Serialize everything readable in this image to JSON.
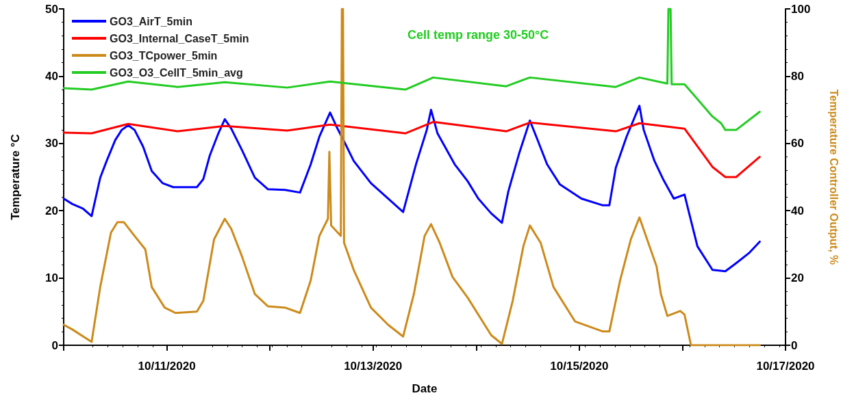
{
  "chart_data": {
    "type": "line",
    "xlabel": "Date",
    "ylabel": "Temperature °C",
    "y2label": "Temperature Controller Output, %",
    "annotations": [
      "Cell temp range 30-50°C"
    ],
    "xlim": [
      "2020-10-10",
      "2020-10-17"
    ],
    "xticks": [
      {
        "value": "2020-10-10",
        "label": null
      },
      {
        "value": "2020-10-11",
        "label": "10/11/2020"
      },
      {
        "value": "2020-10-12",
        "label": null
      },
      {
        "value": "2020-10-13",
        "label": "10/13/2020"
      },
      {
        "value": "2020-10-14",
        "label": null
      },
      {
        "value": "2020-10-15",
        "label": "10/15/2020"
      },
      {
        "value": "2020-10-16",
        "label": null
      },
      {
        "value": "2020-10-17",
        "label": "10/17/2020"
      }
    ],
    "ylim": [
      0,
      50
    ],
    "yticks": [
      0,
      10,
      20,
      30,
      40,
      50
    ],
    "y2lim": [
      0,
      100
    ],
    "y2ticks": [
      0,
      20,
      40,
      60,
      80,
      100
    ],
    "grid": false,
    "legend": "top left",
    "marker": "none",
    "line_style": "solid",
    "series": [
      {
        "name": "GO3_AirT_5min",
        "color": "#0000ff",
        "x": [
          "2020-10-10T00:00",
          "2020-10-10T02:00",
          "2020-10-10T04:30",
          "2020-10-10T06:30",
          "2020-10-10T08:30",
          "2020-10-10T10:00",
          "2020-10-10T12:00",
          "2020-10-10T13:30",
          "2020-10-10T15:00",
          "2020-10-10T16:30",
          "2020-10-10T18:30",
          "2020-10-10T20:30",
          "2020-10-10T23:00",
          "2020-10-11T01:30",
          "2020-10-11T07:00",
          "2020-10-11T08:30",
          "2020-10-11T10:00",
          "2020-10-11T12:00",
          "2020-10-11T13:30",
          "2020-10-11T15:00",
          "2020-10-11T17:30",
          "2020-10-11T20:30",
          "2020-10-11T23:30",
          "2020-10-12T03:30",
          "2020-10-12T07:00",
          "2020-10-12T09:30",
          "2020-10-12T11:30",
          "2020-10-12T14:00",
          "2020-10-12T15:30",
          "2020-10-12T17:30",
          "2020-10-12T19:30",
          "2020-10-12T23:30",
          "2020-10-13T03:30",
          "2020-10-13T07:00",
          "2020-10-13T10:00",
          "2020-10-13T12:30",
          "2020-10-13T13:30",
          "2020-10-13T15:00",
          "2020-10-13T19:00",
          "2020-10-13T22:00",
          "2020-10-14T00:30",
          "2020-10-14T03:30",
          "2020-10-14T06:00",
          "2020-10-14T07:30",
          "2020-10-14T10:00",
          "2020-10-14T12:30",
          "2020-10-14T14:00",
          "2020-10-14T16:30",
          "2020-10-14T19:30",
          "2020-10-15T00:30",
          "2020-10-15T05:30",
          "2020-10-15T07:00",
          "2020-10-15T08:30",
          "2020-10-15T11:00",
          "2020-10-15T14:00",
          "2020-10-15T15:00",
          "2020-10-15T17:30",
          "2020-10-15T19:30",
          "2020-10-15T22:00",
          "2020-10-16T00:30",
          "2020-10-16T01:30",
          "2020-10-16T03:30",
          "2020-10-16T07:00",
          "2020-10-16T10:00",
          "2020-10-16T12:30",
          "2020-10-16T15:30",
          "2020-10-16T18:00"
        ],
        "values": [
          21.8,
          21.0,
          20.3,
          19.2,
          24.9,
          27.4,
          30.5,
          32.0,
          32.7,
          32.0,
          29.5,
          25.9,
          24.1,
          23.5,
          23.5,
          24.7,
          28.2,
          31.5,
          33.6,
          32.2,
          29.0,
          24.9,
          23.2,
          23.1,
          22.7,
          26.9,
          31.0,
          34.6,
          32.5,
          30.0,
          27.4,
          24.1,
          21.8,
          19.8,
          26.9,
          32.0,
          35.0,
          31.5,
          26.9,
          24.4,
          21.8,
          19.6,
          18.2,
          22.9,
          28.5,
          33.4,
          31.0,
          26.9,
          23.9,
          21.8,
          20.8,
          20.8,
          26.4,
          31.0,
          35.6,
          32.0,
          27.4,
          24.7,
          21.8,
          22.4,
          19.8,
          14.7,
          11.2,
          11.0,
          12.2,
          13.7,
          15.4
        ]
      },
      {
        "name": "GO3_Internal_CaseT_5min",
        "color": "#ff0000",
        "x": [
          "2020-10-10T00:00",
          "2020-10-10T06:30",
          "2020-10-10T15:00",
          "2020-10-11T02:30",
          "2020-10-11T13:30",
          "2020-10-12T04:00",
          "2020-10-12T14:00",
          "2020-10-13T07:30",
          "2020-10-13T14:00",
          "2020-10-14T07:00",
          "2020-10-14T12:30",
          "2020-10-15T08:30",
          "2020-10-15T14:00",
          "2020-10-16T00:30",
          "2020-10-16T07:00",
          "2020-10-16T10:00",
          "2020-10-16T12:30",
          "2020-10-16T18:00"
        ],
        "values": [
          31.6,
          31.5,
          32.9,
          31.8,
          32.6,
          31.9,
          32.8,
          31.5,
          33.2,
          31.8,
          33.1,
          31.8,
          33.0,
          32.2,
          26.5,
          25.0,
          25.0,
          28.0
        ]
      },
      {
        "name": "GO3_TCpower_5min",
        "color": "#cc8a1a",
        "axis": "y2",
        "x": [
          "2020-10-10T00:00",
          "2020-10-10T02:00",
          "2020-10-10T06:30",
          "2020-10-10T08:30",
          "2020-10-10T11:00",
          "2020-10-10T12:30",
          "2020-10-10T14:00",
          "2020-10-10T16:30",
          "2020-10-10T19:00",
          "2020-10-10T20:30",
          "2020-10-10T23:30",
          "2020-10-11T02:00",
          "2020-10-11T07:00",
          "2020-10-11T08:30",
          "2020-10-11T11:00",
          "2020-10-11T13:30",
          "2020-10-11T15:00",
          "2020-10-11T17:30",
          "2020-10-11T20:30",
          "2020-10-11T23:30",
          "2020-10-12T03:30",
          "2020-10-12T07:00",
          "2020-10-12T09:30",
          "2020-10-12T11:30",
          "2020-10-12T13:30",
          "2020-10-12T13:50",
          "2020-10-12T14:15",
          "2020-10-12T16:30",
          "2020-10-12T16:45",
          "2020-10-12T17:00",
          "2020-10-12T17:15",
          "2020-10-12T19:30",
          "2020-10-12T23:30",
          "2020-10-13T03:30",
          "2020-10-13T07:00",
          "2020-10-13T09:30",
          "2020-10-13T12:00",
          "2020-10-13T13:30",
          "2020-10-13T15:30",
          "2020-10-13T18:30",
          "2020-10-13T22:00",
          "2020-10-14T03:30",
          "2020-10-14T06:00",
          "2020-10-14T08:30",
          "2020-10-14T11:00",
          "2020-10-14T12:30",
          "2020-10-14T15:00",
          "2020-10-14T18:00",
          "2020-10-14T23:00",
          "2020-10-15T05:30",
          "2020-10-15T07:00",
          "2020-10-15T09:30",
          "2020-10-15T12:00",
          "2020-10-15T14:00",
          "2020-10-15T15:30",
          "2020-10-15T18:00",
          "2020-10-15T19:00",
          "2020-10-15T20:30",
          "2020-10-15T23:30",
          "2020-10-16T00:30",
          "2020-10-16T02:00",
          "2020-10-16T18:00"
        ],
        "values": [
          6.1,
          4.7,
          1.0,
          17.3,
          33.5,
          36.6,
          36.6,
          32.5,
          28.5,
          17.3,
          11.2,
          9.6,
          10.0,
          13.2,
          31.5,
          37.6,
          34.6,
          26.4,
          15.2,
          11.6,
          11.2,
          9.6,
          19.3,
          32.5,
          37.6,
          57.5,
          35.6,
          32.5,
          100,
          100,
          30.5,
          22.4,
          11.2,
          6.1,
          2.6,
          15.2,
          32.5,
          36.0,
          30.5,
          20.3,
          14.2,
          3.0,
          0.4,
          13.2,
          29.5,
          35.6,
          30.5,
          17.3,
          7.1,
          4.1,
          4.1,
          19.3,
          31.5,
          38.0,
          32.5,
          23.4,
          15.2,
          8.7,
          10.2,
          9.1,
          0,
          0
        ]
      },
      {
        "name": "GO3_O3_CellT_5min_avg",
        "color": "#22cc22",
        "x": [
          "2020-10-10T00:00",
          "2020-10-10T06:30",
          "2020-10-10T15:00",
          "2020-10-11T02:30",
          "2020-10-11T13:30",
          "2020-10-12T04:00",
          "2020-10-12T14:00",
          "2020-10-13T07:30",
          "2020-10-13T14:00",
          "2020-10-14T07:00",
          "2020-10-14T12:30",
          "2020-10-15T08:30",
          "2020-10-15T14:00",
          "2020-10-15T20:30",
          "2020-10-15T20:45",
          "2020-10-15T21:15",
          "2020-10-15T21:30",
          "2020-10-16T00:30",
          "2020-10-16T07:00",
          "2020-10-16T09:00",
          "2020-10-16T10:00",
          "2020-10-16T12:30",
          "2020-10-16T18:00"
        ],
        "values": [
          38.2,
          38.0,
          39.2,
          38.4,
          39.1,
          38.3,
          39.2,
          38.0,
          39.8,
          38.5,
          39.8,
          38.4,
          39.8,
          38.9,
          50,
          50,
          38.8,
          38.8,
          34.0,
          33.0,
          32.0,
          32.0,
          34.7
        ]
      }
    ]
  }
}
